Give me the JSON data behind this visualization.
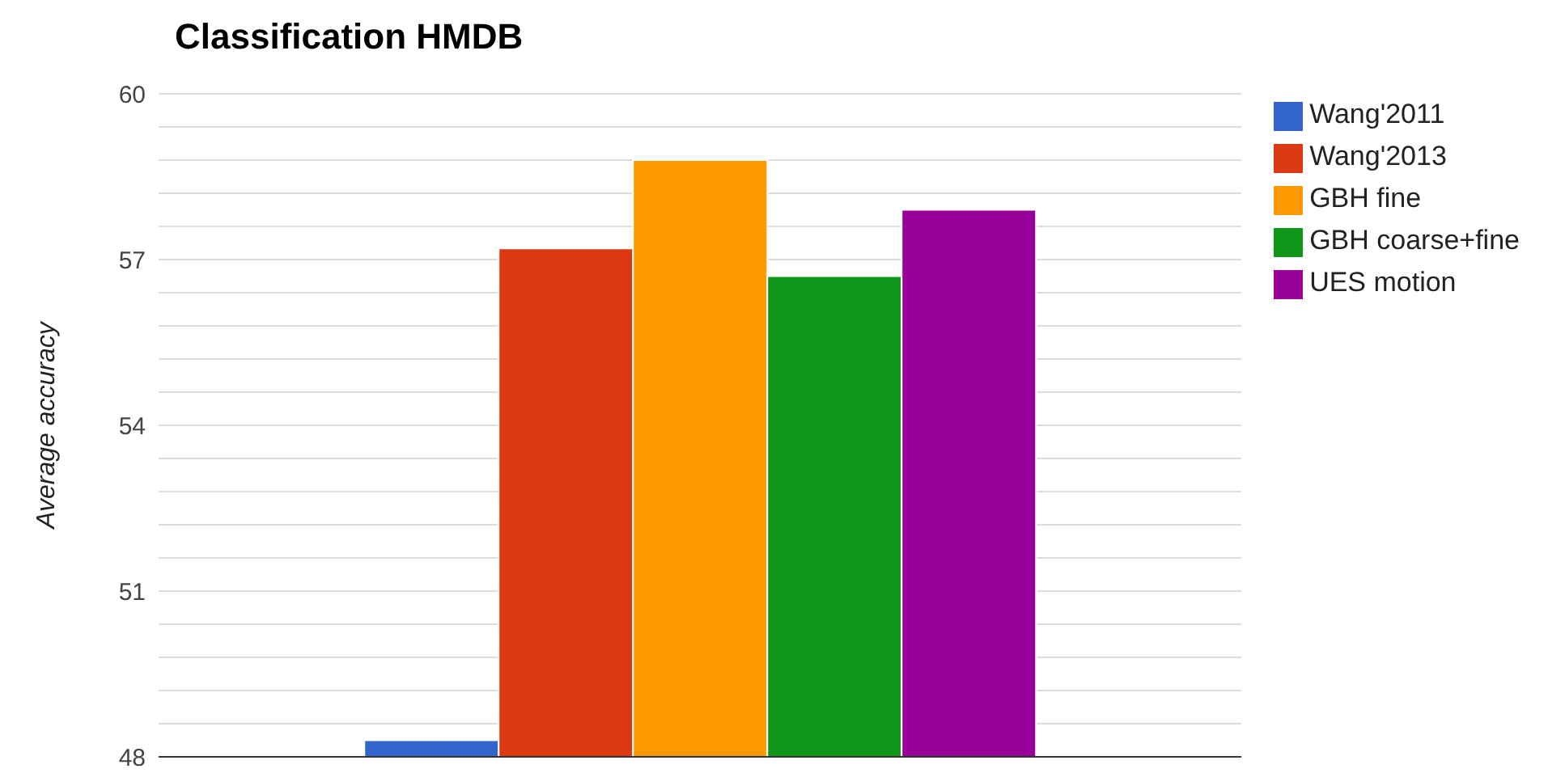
{
  "chart_data": {
    "type": "bar",
    "title": "Classification HMDB",
    "ylabel": "Average accuracy",
    "categories": [
      null
    ],
    "series": [
      {
        "name": "Wang'2011",
        "color": "#3366cc",
        "values": [
          48.3
        ]
      },
      {
        "name": "Wang'2013",
        "color": "#dc3912",
        "values": [
          57.2
        ]
      },
      {
        "name": "GBH fine",
        "color": "#ff9900",
        "values": [
          58.8
        ]
      },
      {
        "name": "GBH coarse+fine",
        "color": "#109618",
        "values": [
          56.7
        ]
      },
      {
        "name": "UES motion",
        "color": "#990099",
        "values": [
          57.9
        ]
      }
    ],
    "ylim": [
      48,
      60
    ],
    "yticks": [
      48,
      {
        "value": 48.6,
        "label": null
      },
      {
        "value": 49.2,
        "label": null
      },
      {
        "value": 49.8,
        "label": null
      },
      {
        "value": 50.4,
        "label": null
      },
      51,
      {
        "value": 51.6,
        "label": null
      },
      {
        "value": 52.2,
        "label": null
      },
      {
        "value": 52.8,
        "label": null
      },
      {
        "value": 53.4,
        "label": null
      },
      54,
      {
        "value": 54.6,
        "label": null
      },
      {
        "value": 55.2,
        "label": null
      },
      {
        "value": 55.8,
        "label": null
      },
      {
        "value": 56.4,
        "label": null
      },
      57,
      {
        "value": 57.6,
        "label": null
      },
      {
        "value": 58.2,
        "label": null
      },
      {
        "value": 58.8,
        "label": null
      },
      {
        "value": 59.4,
        "label": null
      },
      60
    ],
    "grid": "y",
    "legend": "top right",
    "tick_labels": "y"
  }
}
